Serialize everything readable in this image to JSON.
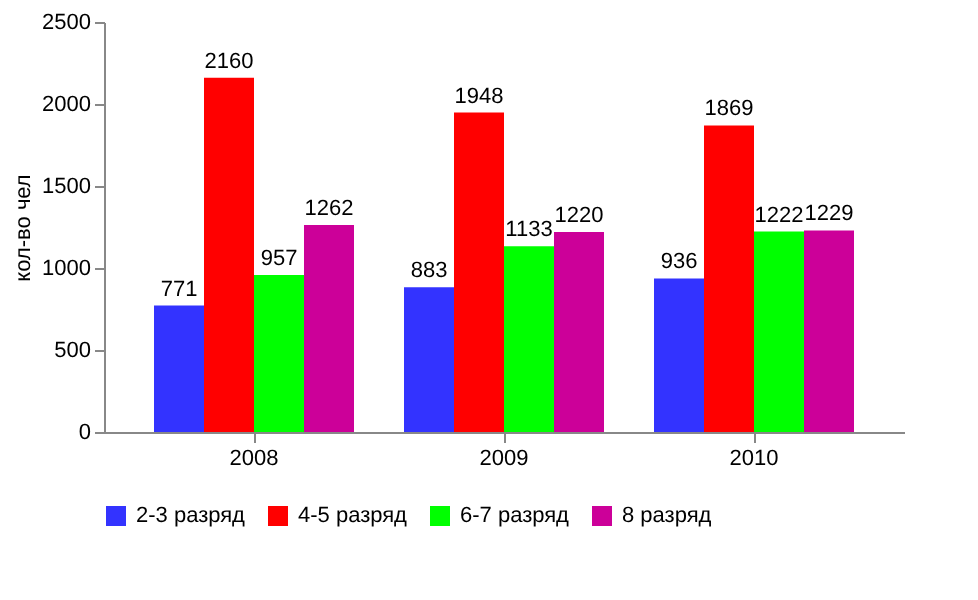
{
  "chart_data": {
    "type": "bar",
    "ylabel": "кол-во чел",
    "categories": [
      "2008",
      "2009",
      "2010"
    ],
    "series": [
      {
        "name": "2-3 разряд",
        "color": "#3333ff",
        "values": [
          771,
          883,
          936
        ]
      },
      {
        "name": "4-5 разряд",
        "color": "#ff0000",
        "values": [
          2160,
          1948,
          1869
        ]
      },
      {
        "name": "6-7 разряд",
        "color": "#00ff00",
        "values": [
          957,
          1133,
          1222
        ]
      },
      {
        "name": "8 разряд",
        "color": "#cc0099",
        "values": [
          1262,
          1220,
          1229
        ]
      }
    ],
    "ylim": [
      0,
      2500
    ],
    "yticks": [
      0,
      500,
      1000,
      1500,
      2000,
      2500
    ],
    "grid": false,
    "legend": "bottom",
    "data_labels": true
  }
}
